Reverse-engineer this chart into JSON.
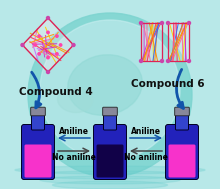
{
  "bg_color": "#b8e8e8",
  "globe_outer": "#7dd4d0",
  "globe_inner": "#c8eef0",
  "globe_land1": "#90d8d4",
  "globe_land2": "#a0dcd8",
  "compound4_label": "Compound 4",
  "compound6_label": "Compound 6",
  "aniline_label": "Aniline",
  "no_aniline_label": "No aniline",
  "bottle_blue": "#2222bb",
  "bottle_blue2": "#3344cc",
  "bottle_pink": "#ff33cc",
  "bottle_dark": "#110044",
  "bottle_mid_liquid": "#110044",
  "bottle_cap": "#888899",
  "arrow_blue": "#1155aa",
  "arrow_dark": "#444444",
  "crystal4_c1": "#ff66aa",
  "crystal4_c2": "#ff9900",
  "crystal4_c3": "#cc33cc",
  "crystal4_c4": "#ff3355",
  "crystal4_c5": "#ffcc00",
  "crystal4_c6": "#cc66ff",
  "crystal6_c1": "#ff6699",
  "crystal6_c2": "#ff8800",
  "crystal6_c3": "#cc33cc",
  "crystal6_c4": "#ff3355",
  "crystal6_c5": "#3366ff",
  "crystal6_c6": "#ffcc00",
  "figsize": [
    2.2,
    1.89
  ],
  "dpi": 100,
  "label_fontsize": 7.5,
  "arrow_label_fontsize": 5.5
}
